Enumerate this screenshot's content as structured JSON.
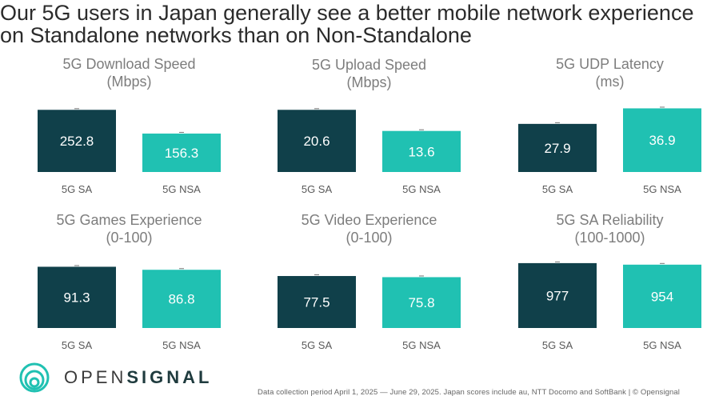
{
  "headline": {
    "line1": "Our 5G users in Japan generally see a better mobile network experience",
    "line2": "on Standalone networks than on Non-Standalone"
  },
  "brand": {
    "name_light": "OPEN",
    "name_bold": "SIGNAL"
  },
  "footer": {
    "note": "Data collection period April 1, 2025 — June 29, 2025. Japan scores include au, NTT Docomo and SoftBank | © Opensignal"
  },
  "colors": {
    "sa": "#10404a",
    "nsa": "#20c1b2",
    "title": "#7d7d7d",
    "logo": "#20c1b2"
  },
  "chart_data": [
    {
      "type": "bar",
      "title": [
        "5G Download Speed",
        "(Mbps)"
      ],
      "categories": [
        "5G SA",
        "5G NSA"
      ],
      "values": [
        252.8,
        156.3
      ],
      "labels": [
        "252.8",
        "156.3"
      ],
      "ylim": [
        0,
        270
      ]
    },
    {
      "type": "bar",
      "title": [
        "5G Upload Speed",
        "(Mbps)"
      ],
      "categories": [
        "5G SA",
        "5G NSA"
      ],
      "values": [
        20.6,
        13.6
      ],
      "labels": [
        "20.6",
        "13.6"
      ],
      "ylim": [
        0,
        22
      ]
    },
    {
      "type": "bar",
      "title": [
        "5G UDP Latency",
        "(ms)"
      ],
      "categories": [
        "5G SA",
        "5G NSA"
      ],
      "values": [
        27.9,
        36.9
      ],
      "labels": [
        "27.9",
        "36.9"
      ],
      "ylim": [
        0,
        38.5
      ]
    },
    {
      "type": "bar",
      "title": [
        "5G Games Experience",
        "(0-100)"
      ],
      "categories": [
        "5G SA",
        "5G NSA"
      ],
      "values": [
        91.3,
        86.8
      ],
      "labels": [
        "91.3",
        "86.8"
      ],
      "ylim": [
        0,
        99
      ]
    },
    {
      "type": "bar",
      "title": [
        "5G Video Experience",
        "(0-100)"
      ],
      "categories": [
        "5G SA",
        "5G NSA"
      ],
      "values": [
        77.5,
        75.8
      ],
      "labels": [
        "77.5",
        "75.8"
      ],
      "ylim": [
        0,
        99
      ]
    },
    {
      "type": "bar",
      "title": [
        "5G SA Reliability",
        "(100-1000)"
      ],
      "categories": [
        "5G SA",
        "5G NSA"
      ],
      "values": [
        977,
        954
      ],
      "labels": [
        "977",
        "954"
      ],
      "ylim": [
        0,
        1000
      ]
    }
  ]
}
